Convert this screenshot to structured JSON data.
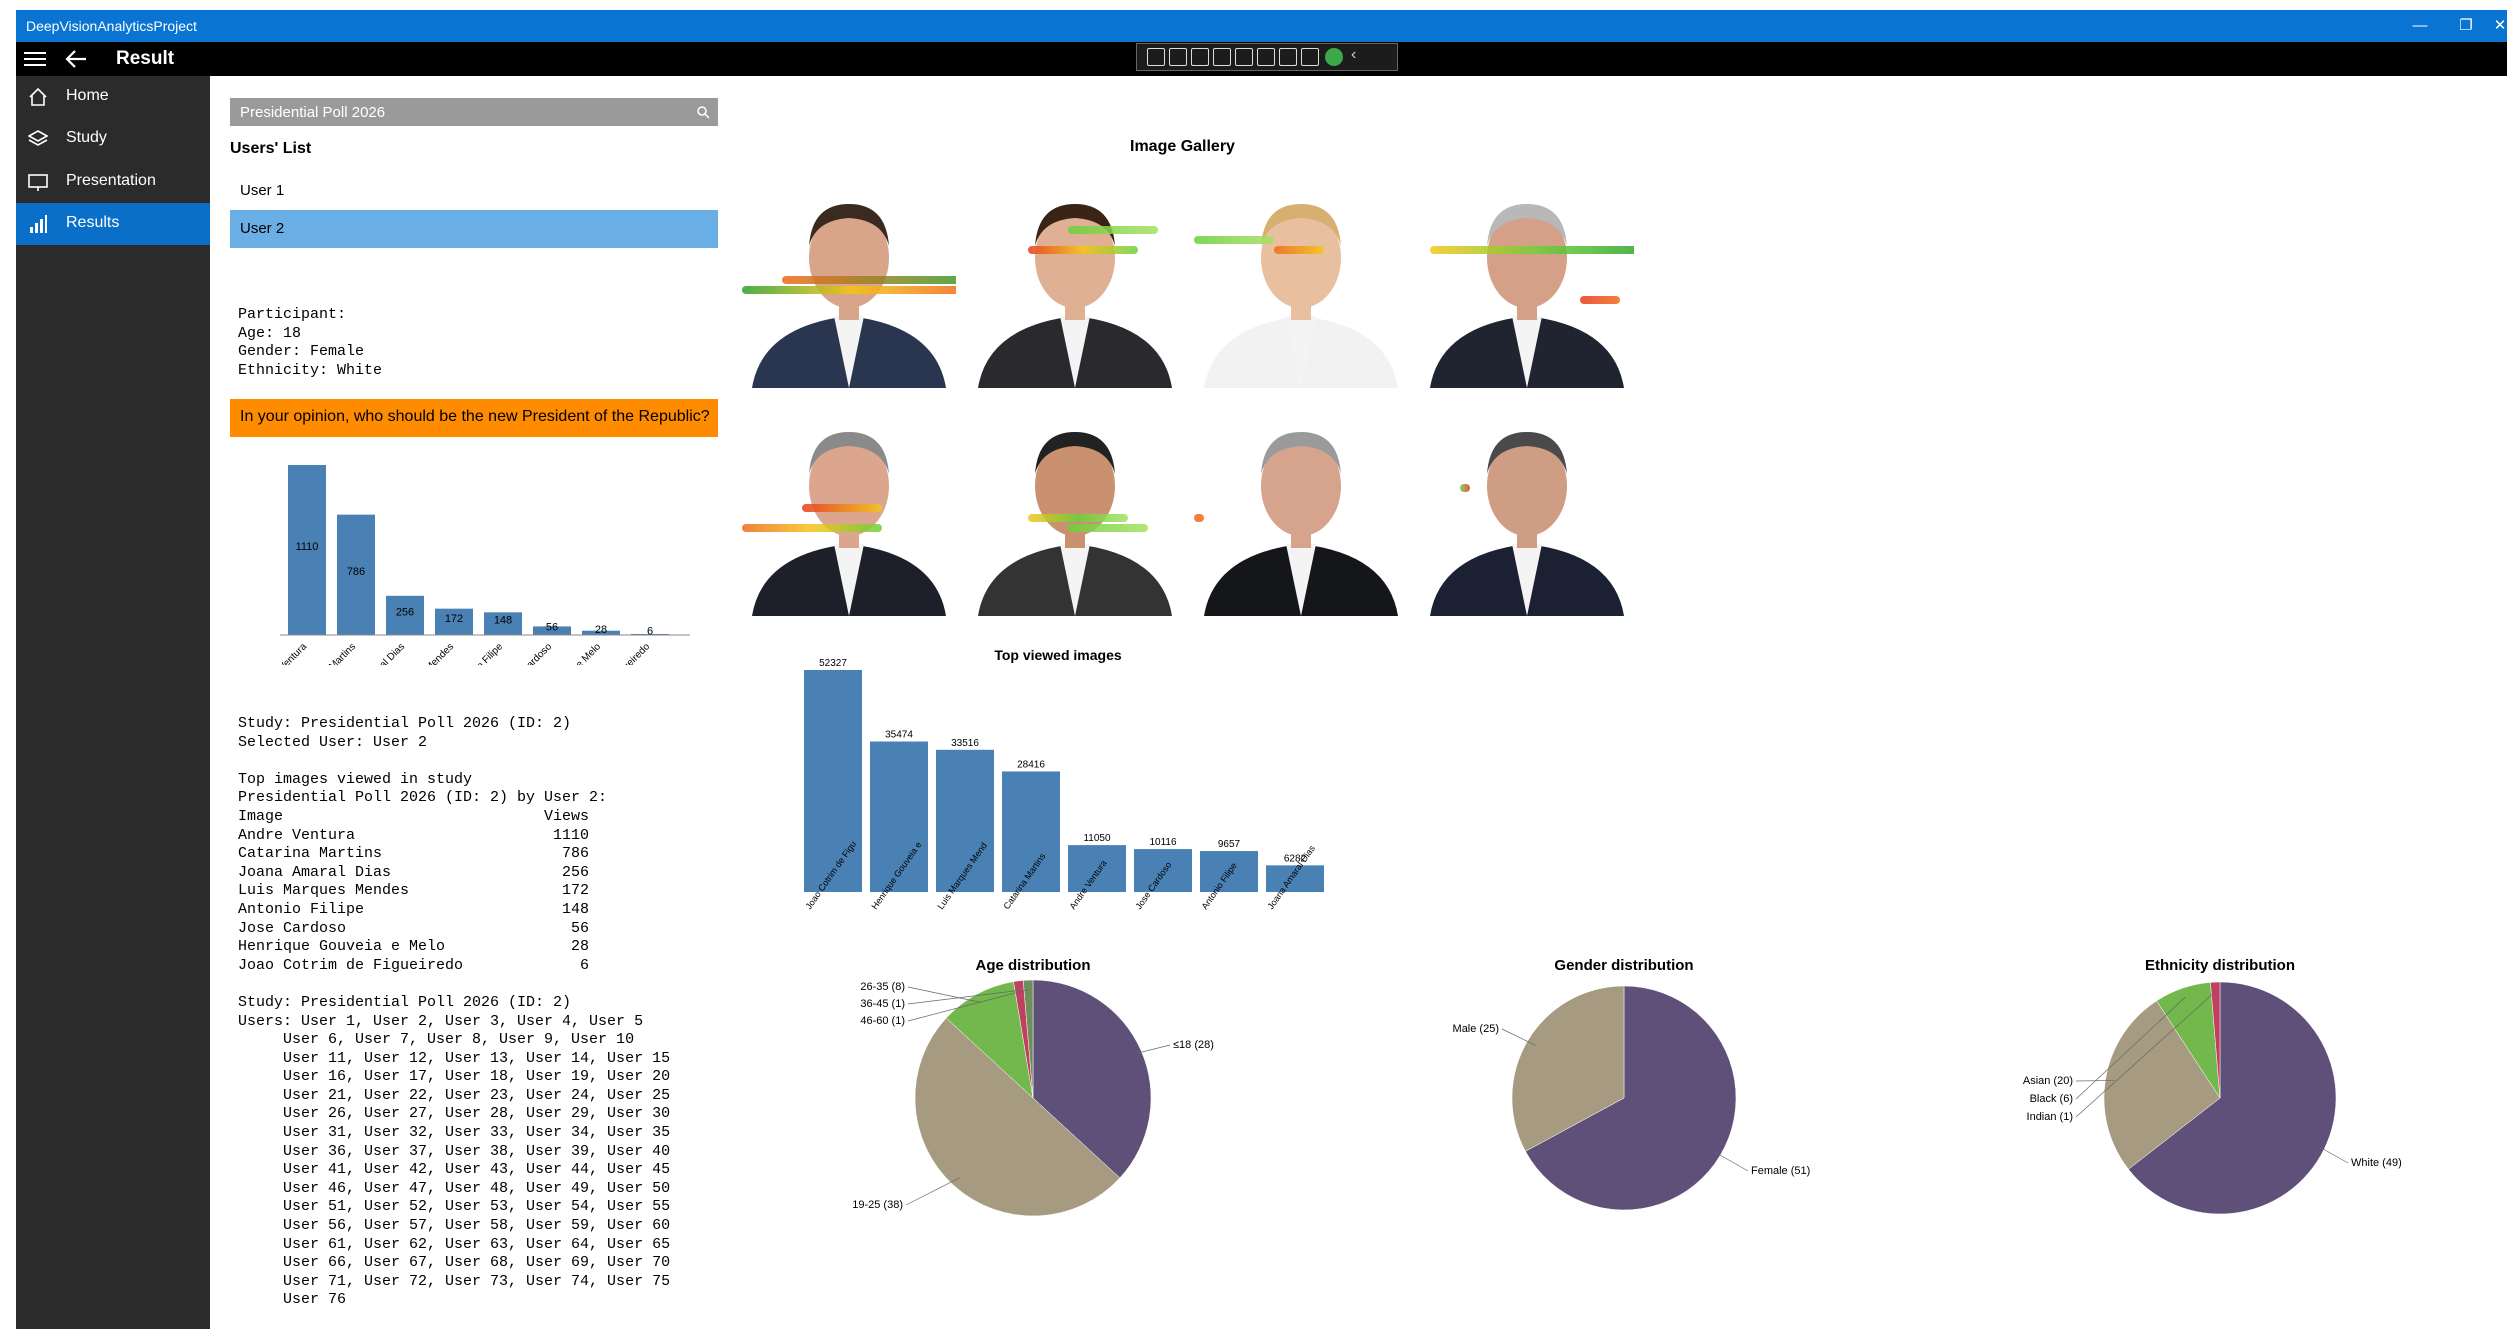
{
  "window": {
    "title": "DeepVisionAnalyticsProject"
  },
  "appbar": {
    "page_title": "Result"
  },
  "nav": {
    "items": [
      {
        "label": "Home",
        "icon": "home-icon"
      },
      {
        "label": "Study",
        "icon": "layers-icon"
      },
      {
        "label": "Presentation",
        "icon": "presentation-icon"
      },
      {
        "label": "Results",
        "icon": "bar-chart-icon",
        "selected": true
      }
    ]
  },
  "search": {
    "value": "Presidential Poll 2026"
  },
  "users_list": {
    "title": "Users' List",
    "users": [
      "User 1",
      "User 2"
    ],
    "selected": "User 2"
  },
  "participant": {
    "text": "Participant:\nAge: 18\nGender: Female\nEthnicity: White"
  },
  "question": "In your opinion, who should be the new President of the Republic?",
  "study_report": {
    "text": "Study: Presidential Poll 2026 (ID: 2)\nSelected User: User 2\n\nTop images viewed in study\nPresidential Poll 2026 (ID: 2) by User 2:\nImage                             Views\nAndre Ventura                      1110\nCatarina Martins                    786\nJoana Amaral Dias                   256\nLuis Marques Mendes                 172\nAntonio Filipe                      148\nJose Cardoso                         56\nHenrique Gouveia e Melo              28\nJoao Cotrim de Figueiredo             6\n\nStudy: Presidential Poll 2026 (ID: 2)\nUsers: User 1, User 2, User 3, User 4, User 5\n     User 6, User 7, User 8, User 9, User 10\n     User 11, User 12, User 13, User 14, User 15\n     User 16, User 17, User 18, User 19, User 20\n     User 21, User 22, User 23, User 24, User 25\n     User 26, User 27, User 28, User 29, User 30\n     User 31, User 32, User 33, User 34, User 35\n     User 36, User 37, User 38, User 39, User 40\n     User 41, User 42, User 43, User 44, User 45\n     User 46, User 47, User 48, User 49, User 50\n     User 51, User 52, User 53, User 54, User 55\n     User 56, User 57, User 58, User 59, User 60\n     User 61, User 62, User 63, User 64, User 65\n     User 66, User 67, User 68, User 69, User 70\n     User 71, User 72, User 73, User 74, User 75\n     User 76"
  },
  "gallery": {
    "title": "Image Gallery"
  },
  "colors": {
    "accent": "#0a74d3",
    "bar": "#4a81b4",
    "selected_user": "#6aaee6",
    "question_bg": "#ff8c00",
    "nav_bg": "#2b2b2b"
  },
  "chart_data": [
    {
      "type": "bar",
      "title": "",
      "categories": [
        "Andre Ventura",
        "Catarina Martins",
        "Joana Amaral Dias",
        "Luis Marques Mendes",
        "Antonio Filipe",
        "Jose Cardoso",
        "Henrique Gouveia e Melo",
        "Joao Cotrim de Figueiredo"
      ],
      "values": [
        1110,
        786,
        256,
        172,
        148,
        56,
        28,
        6
      ],
      "ylim": [
        0,
        1110
      ]
    },
    {
      "type": "bar",
      "title": "Top viewed images",
      "categories": [
        "Joao Cotrim de Figu",
        "Henrique Gouveia e",
        "Luis Marques Mend",
        "Catarina Martins",
        "Andre Ventura",
        "Jose Cardoso",
        "Antonio Filipe",
        "Joana Amaral Dias"
      ],
      "values": [
        52327,
        35474,
        33516,
        28416,
        11050,
        10116,
        9657,
        6282
      ],
      "ylim": [
        0,
        52327
      ]
    },
    {
      "type": "pie",
      "title": "Age distribution",
      "labels": [
        "≤18",
        "19-25",
        "26-35",
        "36-45",
        "46-60"
      ],
      "values": [
        28,
        38,
        8,
        1,
        1
      ],
      "colors": [
        "#5f5079",
        "#a69a80",
        "#72b84c",
        "#c04060",
        "#6e8e5a"
      ]
    },
    {
      "type": "pie",
      "title": "Gender distribution",
      "labels": [
        "Female",
        "Male"
      ],
      "values": [
        51,
        25
      ],
      "colors": [
        "#5f5079",
        "#a69a80"
      ]
    },
    {
      "type": "pie",
      "title": "Ethnicity distribution",
      "labels": [
        "White",
        "Asian",
        "Black",
        "Indian"
      ],
      "values": [
        49,
        20,
        6,
        1
      ],
      "colors": [
        "#5f5079",
        "#a69a80",
        "#72b84c",
        "#c04060"
      ]
    }
  ]
}
